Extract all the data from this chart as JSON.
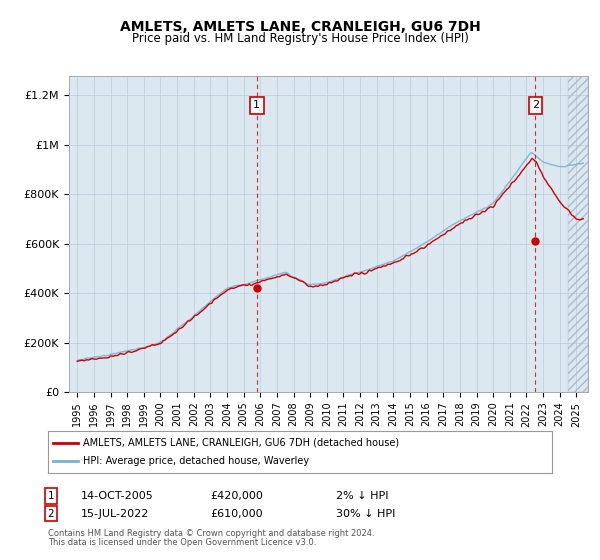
{
  "title": "AMLETS, AMLETS LANE, CRANLEIGH, GU6 7DH",
  "subtitle": "Price paid vs. HM Land Registry's House Price Index (HPI)",
  "ylabel_ticks": [
    "£0",
    "£200K",
    "£400K",
    "£600K",
    "£800K",
    "£1M",
    "£1.2M"
  ],
  "ytick_values": [
    0,
    200000,
    400000,
    600000,
    800000,
    1000000,
    1200000
  ],
  "ylim": [
    0,
    1280000
  ],
  "xlim_start": 1994.5,
  "xlim_end": 2025.7,
  "sale1_x": 2005.79,
  "sale1_y": 420000,
  "sale2_x": 2022.54,
  "sale2_y": 610000,
  "sale1_date": "14-OCT-2005",
  "sale1_price": "£420,000",
  "sale1_hpi": "2% ↓ HPI",
  "sale2_date": "15-JUL-2022",
  "sale2_price": "£610,000",
  "sale2_hpi": "30% ↓ HPI",
  "line_color_red": "#cc0000",
  "line_color_blue": "#7ab0d4",
  "marker_color": "#cc0000",
  "vline_color": "#cc0000",
  "bg_color": "#dce8f0",
  "grid_color": "#bbccdd",
  "legend_label_red": "AMLETS, AMLETS LANE, CRANLEIGH, GU6 7DH (detached house)",
  "legend_label_blue": "HPI: Average price, detached house, Waverley",
  "footnote1": "Contains HM Land Registry data © Crown copyright and database right 2024.",
  "footnote2": "This data is licensed under the Open Government Licence v3.0."
}
